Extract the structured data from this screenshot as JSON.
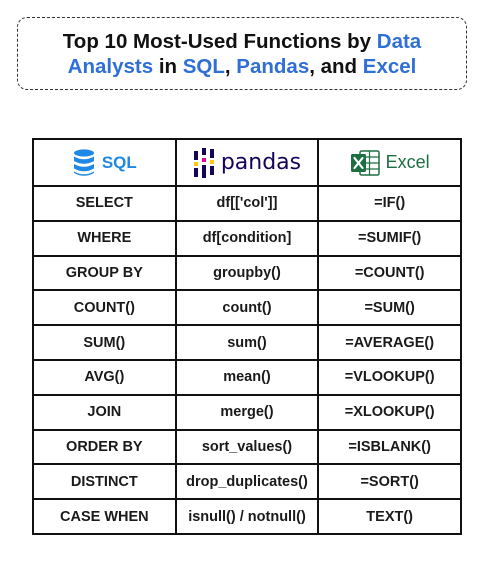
{
  "title": {
    "line1": [
      {
        "text": "Top 10 Most-Used Functions by ",
        "highlight": false
      },
      {
        "text": "Data",
        "highlight": true
      }
    ],
    "line2": [
      {
        "text": "Analysts",
        "highlight": true
      },
      {
        "text": " in ",
        "highlight": false
      },
      {
        "text": "SQL",
        "highlight": true
      },
      {
        "text": ", ",
        "highlight": false
      },
      {
        "text": "Pandas",
        "highlight": true
      },
      {
        "text": ", and ",
        "highlight": false
      },
      {
        "text": "Excel",
        "highlight": true
      }
    ]
  },
  "colors": {
    "accent": "#2f6fd6",
    "sql": "#1e88e5",
    "pandas": "#150458",
    "pandas_accent": "#e70488",
    "pandas_yellow": "#ffca00",
    "excel": "#1d6f42"
  },
  "columns": [
    {
      "label": "SQL",
      "icon": "database-icon"
    },
    {
      "label": "pandas",
      "icon": "pandas-logo-icon"
    },
    {
      "label": "Excel",
      "icon": "excel-logo-icon"
    }
  ],
  "rows": [
    [
      "SELECT",
      "df[['col']]",
      "=IF()"
    ],
    [
      "WHERE",
      "df[condition]",
      "=SUMIF()"
    ],
    [
      "GROUP BY",
      "groupby()",
      "=COUNT()"
    ],
    [
      "COUNT()",
      "count()",
      "=SUM()"
    ],
    [
      "SUM()",
      "sum()",
      "=AVERAGE()"
    ],
    [
      "AVG()",
      "mean()",
      "=VLOOKUP()"
    ],
    [
      "JOIN",
      "merge()",
      "=XLOOKUP()"
    ],
    [
      "ORDER BY",
      "sort_values()",
      "=ISBLANK()"
    ],
    [
      "DISTINCT",
      "drop_duplicates()",
      "=SORT()"
    ],
    [
      "CASE WHEN",
      "isnull() / notnull()",
      "TEXT()"
    ]
  ]
}
